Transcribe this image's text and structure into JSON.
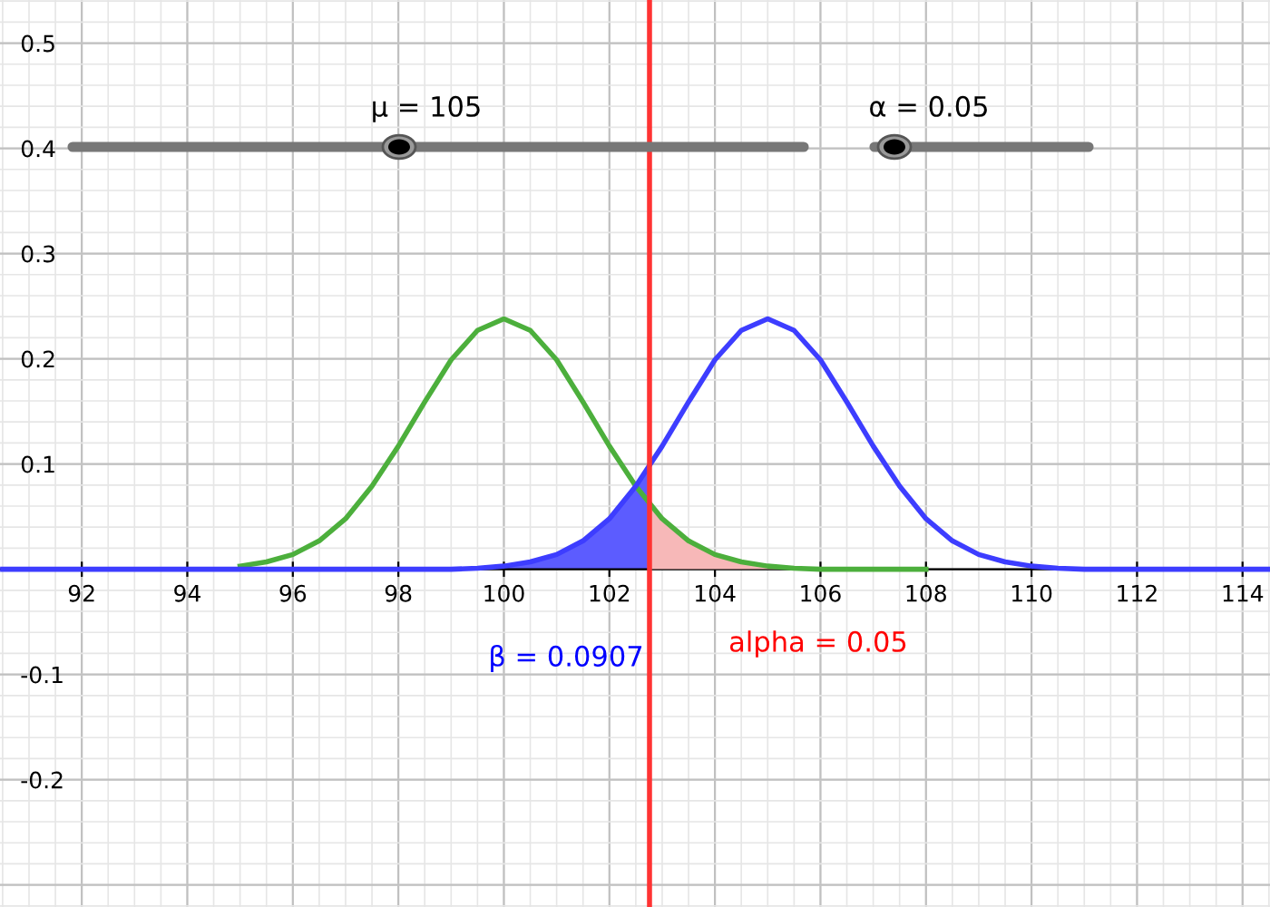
{
  "chart_data": {
    "type": "line",
    "xlim": [
      90.45,
      114.52
    ],
    "ylim": [
      -0.321,
      0.541
    ],
    "xticks": [
      92,
      94,
      96,
      98,
      100,
      102,
      104,
      106,
      108,
      110,
      112,
      114
    ],
    "yticks": [
      -0.2,
      -0.1,
      0.1,
      0.2,
      0.3,
      0.4,
      0.5
    ],
    "grid": true,
    "series": [
      {
        "type": "area",
        "color": "#5c5cff",
        "x": [
          99,
          99.5,
          100,
          100.5,
          101,
          101.5,
          102,
          102.5,
          102.76
        ],
        "values": [
          0,
          0.001,
          0.003,
          0.007,
          0.014,
          0.027,
          0.048,
          0.079,
          0.098
        ]
      },
      {
        "type": "area",
        "color": "#f7b8b8",
        "x": [
          102.76,
          103,
          103.5,
          104,
          104.5,
          105,
          105.5,
          106,
          107
        ],
        "values": [
          0.062,
          0.048,
          0.027,
          0.014,
          0.007,
          0.003,
          0.001,
          0,
          0
        ]
      },
      {
        "color": "#4caf3c",
        "x": [
          95,
          95.5,
          96,
          96.5,
          97,
          97.5,
          98,
          98.5,
          99,
          99.5,
          100,
          100.5,
          101,
          101.5,
          102,
          102.5,
          103,
          103.5,
          104,
          104.5,
          105,
          105.5,
          106,
          106.5,
          107,
          108
        ],
        "values": [
          0.003,
          0.007,
          0.014,
          0.027,
          0.048,
          0.079,
          0.117,
          0.159,
          0.199,
          0.227,
          0.238,
          0.227,
          0.199,
          0.159,
          0.117,
          0.079,
          0.048,
          0.027,
          0.014,
          0.007,
          0.003,
          0.001,
          0,
          0,
          0,
          0
        ]
      },
      {
        "color": "#3d3dff",
        "x": [
          90.5,
          98,
          98.5,
          99,
          99.5,
          100,
          100.5,
          101,
          101.5,
          102,
          102.5,
          103,
          103.5,
          104,
          104.5,
          105,
          105.5,
          106,
          106.5,
          107,
          107.5,
          108,
          108.5,
          109,
          109.5,
          110,
          110.5,
          111,
          111.5,
          112,
          114.5
        ],
        "values": [
          0,
          0,
          0,
          0,
          0.001,
          0.003,
          0.007,
          0.014,
          0.027,
          0.048,
          0.079,
          0.117,
          0.159,
          0.199,
          0.227,
          0.238,
          0.227,
          0.199,
          0.159,
          0.117,
          0.079,
          0.048,
          0.027,
          0.014,
          0.007,
          0.003,
          0.001,
          0,
          0,
          0,
          0
        ]
      }
    ],
    "ref_lines": [
      {
        "axis": "x",
        "value": 102.76,
        "color": "#ff3333"
      }
    ],
    "annotations": [
      "μ = 105",
      "α = 0.05",
      "β = 0.0907",
      "alpha = 0.05"
    ]
  }
}
